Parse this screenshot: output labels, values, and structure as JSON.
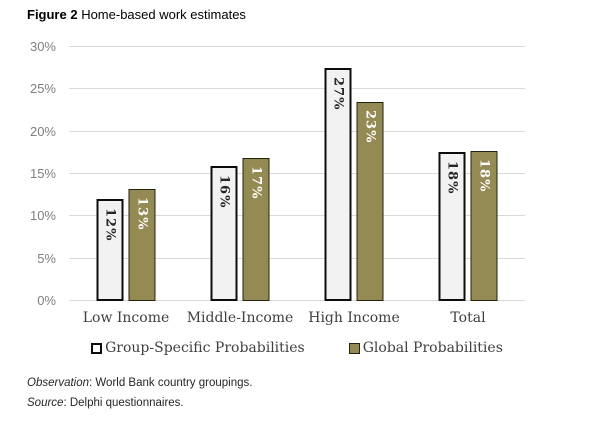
{
  "title": {
    "prefix": "Figure 2",
    "rest": " Home-based work estimates"
  },
  "chart_data": {
    "type": "bar",
    "title": "Figure 2 Home-based work estimates",
    "categories": [
      "Low Income",
      "Middle-Income",
      "High Income",
      "Total"
    ],
    "series": [
      {
        "name": "Group-Specific Probabilities",
        "values": [
          12,
          16,
          27,
          18
        ],
        "labels": [
          "12%",
          "16%",
          "27%",
          "18%"
        ],
        "bar_heights_pct": [
          12.0,
          16.0,
          27.5,
          17.6
        ],
        "style": "white-outlined"
      },
      {
        "name": "Global Probabilities",
        "values": [
          13,
          17,
          23,
          18
        ],
        "labels": [
          "13%",
          "17%",
          "23%",
          "18%"
        ],
        "bar_heights_pct": [
          13.2,
          16.9,
          23.5,
          17.7
        ],
        "style": "olive-filled"
      }
    ],
    "xlabel": "",
    "ylabel": "",
    "ylim": [
      0,
      30
    ],
    "yticks": [
      0,
      5,
      10,
      15,
      20,
      25,
      30
    ],
    "ytick_labels": [
      "0%",
      "5%",
      "10%",
      "15%",
      "20%",
      "25%",
      "30%"
    ],
    "grid": "horizontal",
    "legend_position": "bottom"
  },
  "colors": {
    "bar_olive": "#948A54",
    "bar_white_fill": "#F2F2F2",
    "bar_border": "#0D0D0D",
    "gridline": "#D9D9D9",
    "tick_text": "#7F7F7F",
    "category_text": "#3F3F3F",
    "value_text_on_white": "#262626",
    "value_text_on_olive": "#FFFFFF"
  },
  "notes": {
    "observation_label": "Observation",
    "observation_rest": ": World Bank country groupings.",
    "source_label": "Source",
    "source_rest": ": Delphi questionnaires."
  }
}
